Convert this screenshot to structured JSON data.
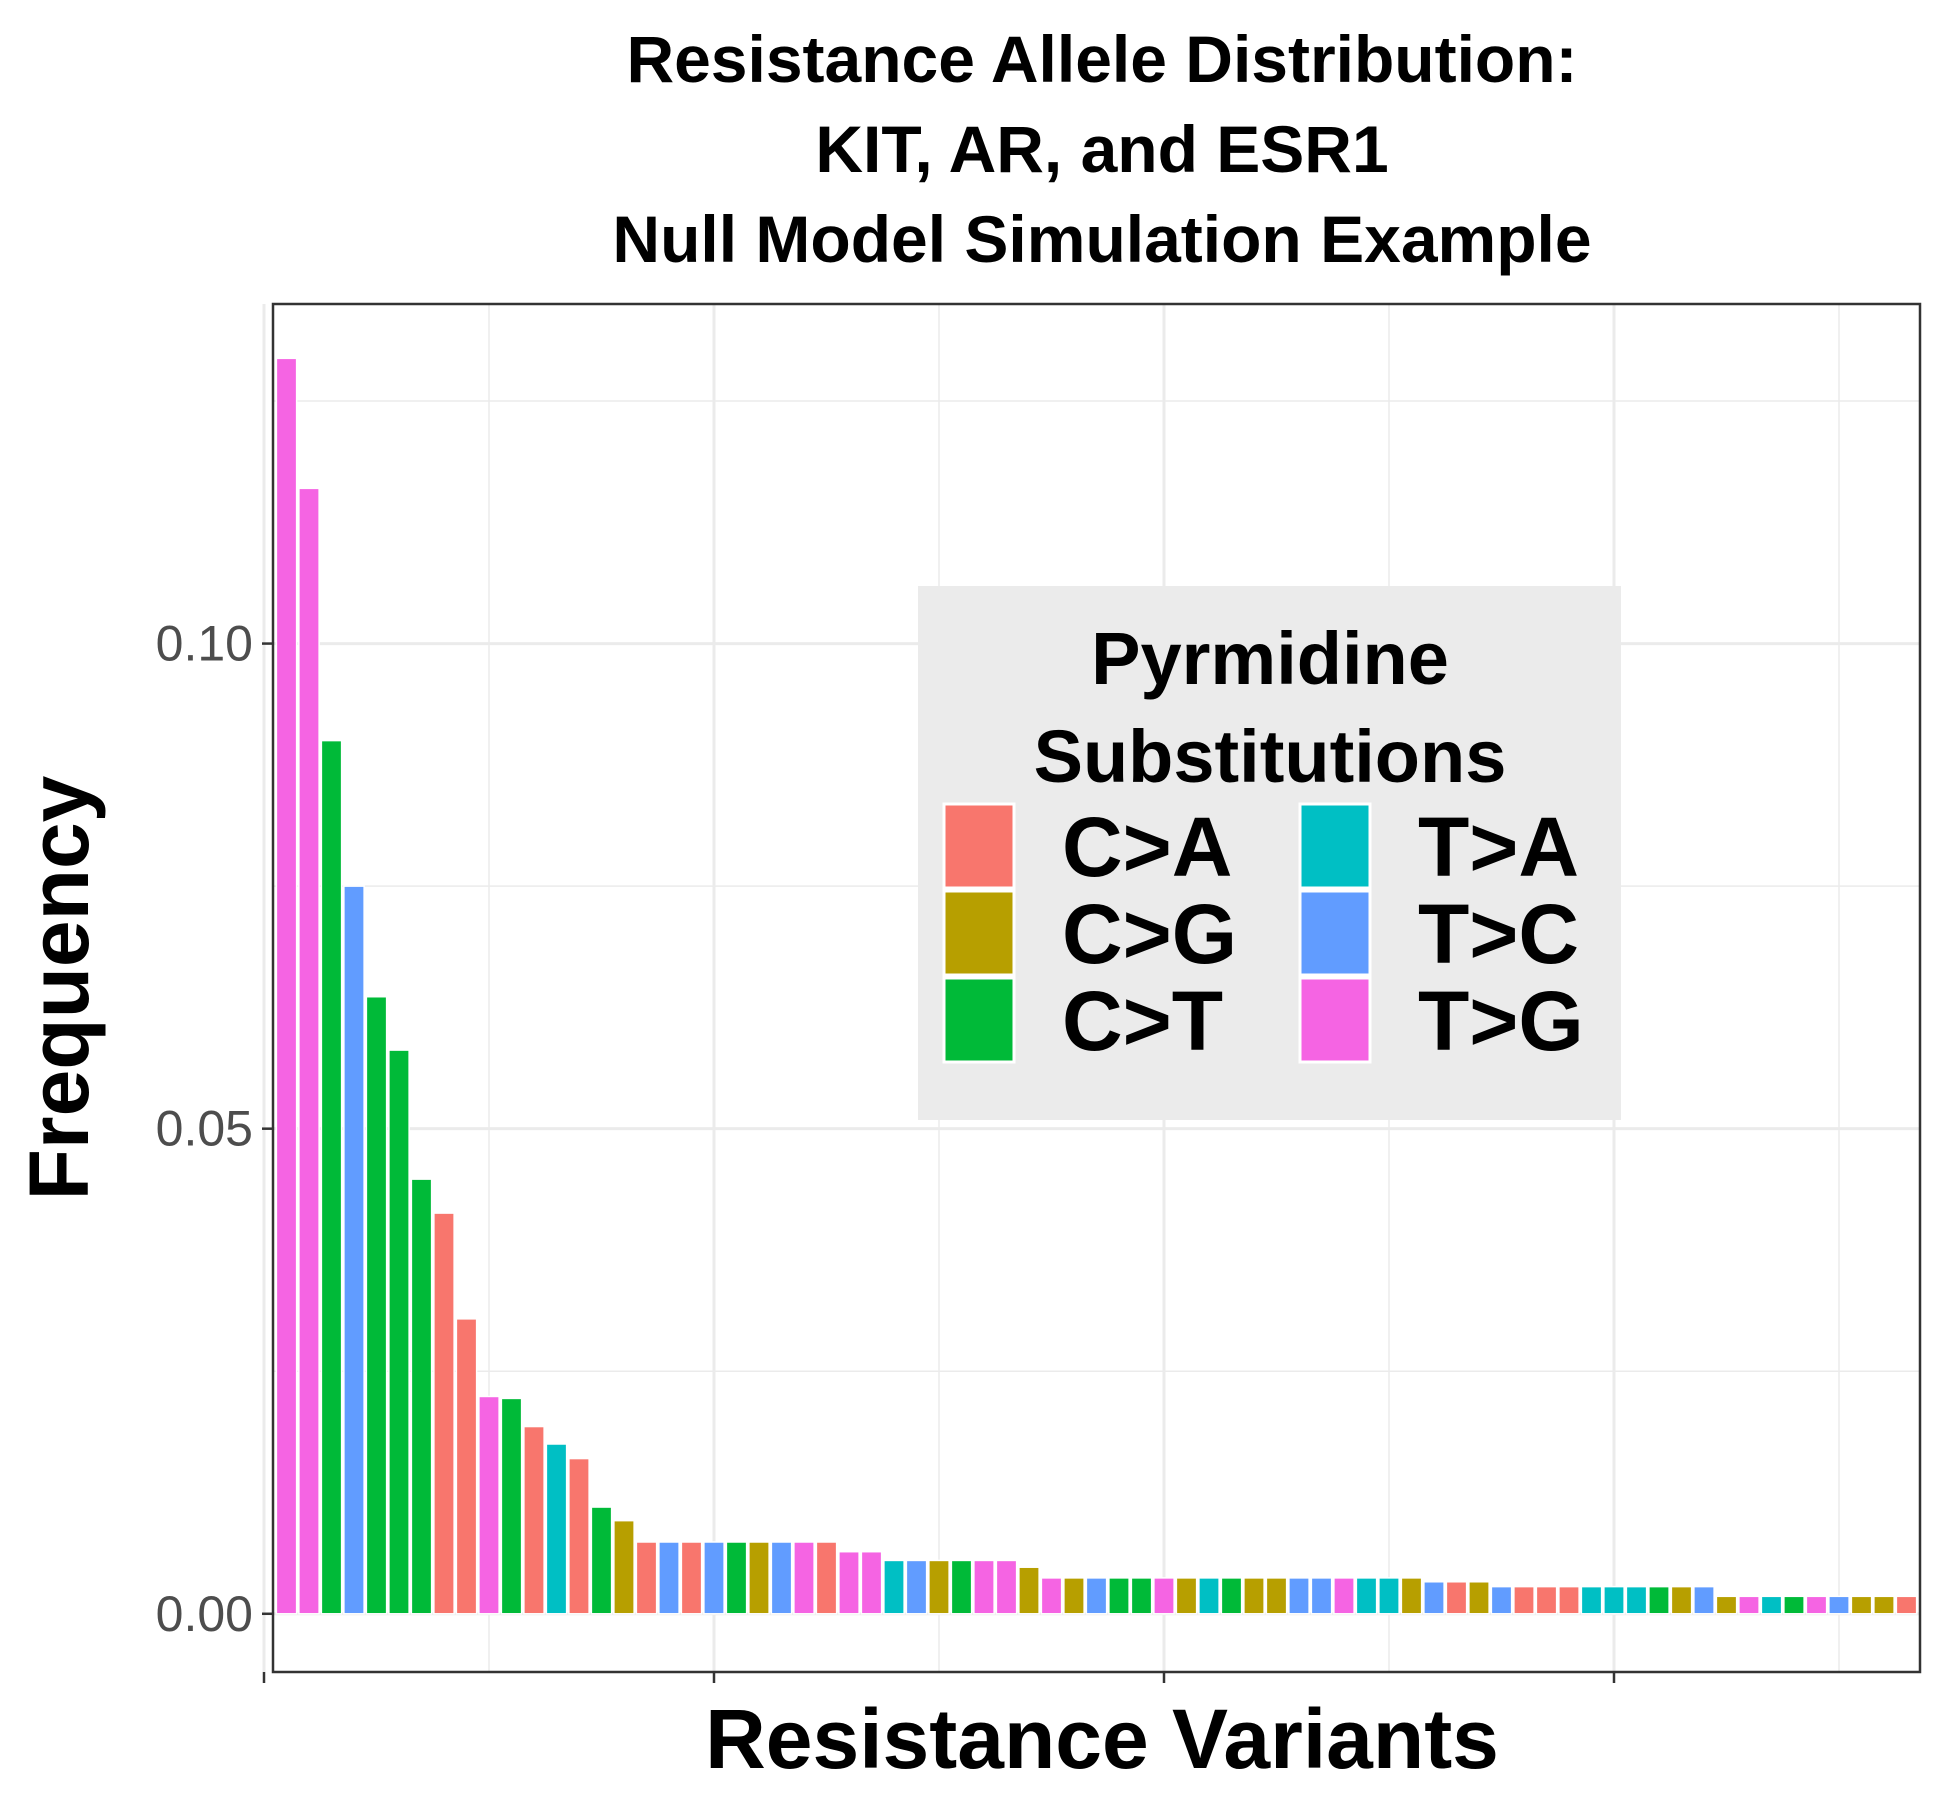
{
  "chart_data": {
    "type": "bar",
    "title": [
      "Resistance Allele Distribution:",
      "KIT, AR, and ESR1",
      "Null Model Simulation Example"
    ],
    "xlabel": "Resistance Variants",
    "ylabel": "Frequency",
    "ylim": [
      -0.006,
      0.135
    ],
    "yticks": [
      {
        "value": 0.0,
        "label": "0.00"
      },
      {
        "value": 0.05,
        "label": "0.05"
      },
      {
        "value": 0.1,
        "label": "0.10"
      }
    ],
    "grid": true,
    "legend": {
      "title": [
        "Pyrmidine",
        "Substitutions"
      ],
      "placement": "inside-top-right",
      "entries": [
        {
          "key": "CA",
          "label": "C>A",
          "color": "#F8766D"
        },
        {
          "key": "CG",
          "label": "C>G",
          "color": "#B79F00"
        },
        {
          "key": "CT",
          "label": "C>T",
          "color": "#00BA38"
        },
        {
          "key": "TA",
          "label": "T>A",
          "color": "#00BFC4"
        },
        {
          "key": "TC",
          "label": "T>C",
          "color": "#619CFF"
        },
        {
          "key": "TG",
          "label": "T>G",
          "color": "#F564E3"
        }
      ]
    },
    "values": [
      0.1294,
      0.116,
      0.09,
      0.075,
      0.0636,
      0.0581,
      0.0448,
      0.0413,
      0.0304,
      0.0224,
      0.0222,
      0.0193,
      0.0175,
      0.016,
      0.011,
      0.0096,
      0.0074,
      0.0074,
      0.0074,
      0.0074,
      0.0074,
      0.0074,
      0.0074,
      0.0074,
      0.0074,
      0.0064,
      0.0064,
      0.0055,
      0.0055,
      0.0055,
      0.0055,
      0.0055,
      0.0055,
      0.0048,
      0.0037,
      0.0037,
      0.0037,
      0.0037,
      0.0037,
      0.0037,
      0.0037,
      0.0037,
      0.0037,
      0.0037,
      0.0037,
      0.0037,
      0.0037,
      0.0037,
      0.0037,
      0.0037,
      0.0037,
      0.0033,
      0.0033,
      0.0033,
      0.0028,
      0.0028,
      0.0028,
      0.0028,
      0.0028,
      0.0028,
      0.0028,
      0.0028,
      0.0028,
      0.0028,
      0.0018,
      0.0018,
      0.0018,
      0.0018,
      0.0018,
      0.0018,
      0.0018,
      0.0018,
      0.0018
    ],
    "colors": [
      "TG",
      "TG",
      "CT",
      "TC",
      "CT",
      "CT",
      "CT",
      "CA",
      "CA",
      "TG",
      "CT",
      "CA",
      "TA",
      "CA",
      "CT",
      "CG",
      "CA",
      "TC",
      "CA",
      "TC",
      "CT",
      "CG",
      "TC",
      "TG",
      "CA",
      "TG",
      "TG",
      "TA",
      "TC",
      "CG",
      "CT",
      "TG",
      "TG",
      "CG",
      "TG",
      "CG",
      "TC",
      "CT",
      "CT",
      "TG",
      "CG",
      "TA",
      "CT",
      "CG",
      "CG",
      "TC",
      "TC",
      "TG",
      "TA",
      "TA",
      "CG",
      "TC",
      "CA",
      "CG",
      "TC",
      "CA",
      "CA",
      "CA",
      "TA",
      "TA",
      "TA",
      "CT",
      "CG",
      "TC",
      "CG",
      "TG",
      "TA",
      "CT",
      "TG",
      "TC",
      "CG",
      "CG",
      "CA"
    ]
  }
}
